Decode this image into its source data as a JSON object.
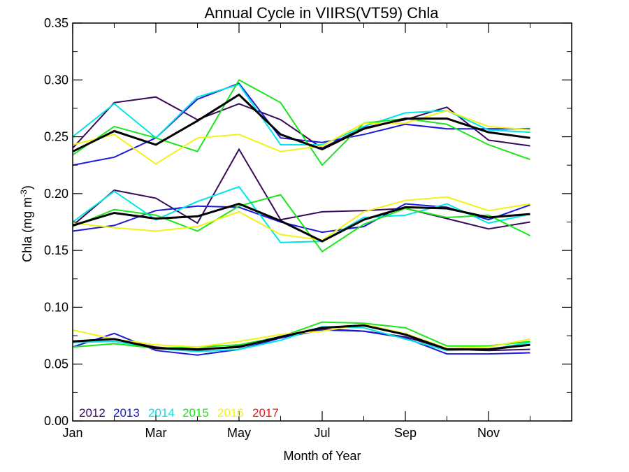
{
  "chart_data": {
    "type": "line",
    "title": "Annual Cycle in VIIRS(VT59) Chla",
    "xlabel": "Month of Year",
    "ylabel_main": "Chla (mg m",
    "ylabel_sup": "-3",
    "ylabel_close": ")",
    "xlim": [
      1,
      13
    ],
    "ylim": [
      0.0,
      0.35
    ],
    "x_ticks": [
      {
        "value": 1,
        "label": "Jan"
      },
      {
        "value": 3,
        "label": "Mar"
      },
      {
        "value": 5,
        "label": "May"
      },
      {
        "value": 7,
        "label": "Jul"
      },
      {
        "value": 9,
        "label": "Sep"
      },
      {
        "value": 11,
        "label": "Nov"
      }
    ],
    "y_ticks": [
      {
        "value": 0.0,
        "label": "0.00"
      },
      {
        "value": 0.05,
        "label": "0.05"
      },
      {
        "value": 0.1,
        "label": "0.10"
      },
      {
        "value": 0.15,
        "label": "0.15"
      },
      {
        "value": 0.2,
        "label": "0.20"
      },
      {
        "value": 0.25,
        "label": "0.25"
      },
      {
        "value": 0.3,
        "label": "0.30"
      },
      {
        "value": 0.35,
        "label": "0.35"
      }
    ],
    "x": [
      1,
      2,
      3,
      4,
      5,
      6,
      7,
      8,
      9,
      10,
      11,
      12
    ],
    "legend": [
      {
        "label": "2012",
        "color": "#3a0a5a"
      },
      {
        "label": "2013",
        "color": "#1a1ad8"
      },
      {
        "label": "2014",
        "color": "#00e6e6"
      },
      {
        "label": "2015",
        "color": "#1ae61a"
      },
      {
        "label": "2016",
        "color": "#f2f21a"
      },
      {
        "label": "2017",
        "color": "#e61a1a"
      }
    ],
    "groups": [
      {
        "series": [
          {
            "year": "2012",
            "color": "#3a0a5a",
            "values": [
              0.24,
              0.28,
              0.285,
              0.265,
              0.279,
              0.265,
              0.24,
              0.258,
              0.265,
              0.276,
              0.247,
              0.242
            ]
          },
          {
            "year": "2013",
            "color": "#1a1ad8",
            "values": [
              0.225,
              0.232,
              0.249,
              0.283,
              0.297,
              0.249,
              0.245,
              0.252,
              0.261,
              0.257,
              0.257,
              0.257
            ]
          },
          {
            "year": "2014",
            "color": "#00e6e6",
            "values": [
              0.25,
              0.279,
              0.249,
              0.285,
              0.296,
              0.243,
              0.243,
              0.259,
              0.271,
              0.273,
              0.256,
              0.254
            ]
          },
          {
            "year": "2015",
            "color": "#1ae61a",
            "values": [
              0.234,
              0.259,
              0.249,
              0.237,
              0.3,
              0.28,
              0.225,
              0.262,
              0.266,
              0.261,
              0.243,
              0.23
            ]
          },
          {
            "year": "2016",
            "color": "#f2f21a",
            "values": [
              0.243,
              0.252,
              0.226,
              0.249,
              0.252,
              0.237,
              0.242,
              0.262,
              0.262,
              0.273,
              0.259,
              0.256
            ]
          },
          {
            "year": "mean",
            "color": "#000000",
            "values": [
              0.237,
              0.255,
              0.243,
              0.264,
              0.287,
              0.252,
              0.239,
              0.257,
              0.266,
              0.266,
              0.254,
              0.249
            ]
          }
        ]
      },
      {
        "series": [
          {
            "year": "2012",
            "color": "#3a0a5a",
            "values": [
              0.172,
              0.203,
              0.196,
              0.174,
              0.239,
              0.177,
              0.184,
              0.185,
              0.187,
              0.178,
              0.169,
              0.175
            ]
          },
          {
            "year": "2013",
            "color": "#1a1ad8",
            "values": [
              0.167,
              0.172,
              0.185,
              0.189,
              0.188,
              0.175,
              0.166,
              0.171,
              0.191,
              0.188,
              0.177,
              0.19
            ]
          },
          {
            "year": "2014",
            "color": "#00e6e6",
            "values": [
              0.175,
              0.202,
              0.177,
              0.193,
              0.206,
              0.157,
              0.158,
              0.179,
              0.181,
              0.191,
              0.174,
              0.182
            ]
          },
          {
            "year": "2015",
            "color": "#1ae61a",
            "values": [
              0.171,
              0.186,
              0.181,
              0.167,
              0.189,
              0.199,
              0.149,
              0.173,
              0.187,
              0.179,
              0.181,
              0.163
            ]
          },
          {
            "year": "2016",
            "color": "#f2f21a",
            "values": [
              0.174,
              0.17,
              0.167,
              0.171,
              0.184,
              0.164,
              0.159,
              0.184,
              0.194,
              0.197,
              0.185,
              0.191
            ]
          },
          {
            "year": "mean",
            "color": "#000000",
            "values": [
              0.172,
              0.183,
              0.178,
              0.18,
              0.191,
              0.176,
              0.158,
              0.177,
              0.188,
              0.187,
              0.179,
              0.182
            ]
          }
        ]
      },
      {
        "series": [
          {
            "year": "2012",
            "color": "#3a0a5a",
            "values": [
              0.07,
              0.072,
              0.065,
              0.062,
              0.066,
              0.073,
              0.081,
              0.079,
              0.074,
              0.063,
              0.062,
              0.063
            ]
          },
          {
            "year": "2013",
            "color": "#1a1ad8",
            "values": [
              0.065,
              0.077,
              0.062,
              0.058,
              0.063,
              0.073,
              0.08,
              0.079,
              0.073,
              0.059,
              0.059,
              0.06
            ]
          },
          {
            "year": "2014",
            "color": "#00e6e6",
            "values": [
              0.069,
              0.07,
              0.064,
              0.061,
              0.063,
              0.071,
              0.083,
              0.082,
              0.072,
              0.062,
              0.063,
              0.069
            ]
          },
          {
            "year": "2015",
            "color": "#1ae61a",
            "values": [
              0.065,
              0.068,
              0.064,
              0.065,
              0.067,
              0.074,
              0.087,
              0.086,
              0.082,
              0.066,
              0.066,
              0.07
            ]
          },
          {
            "year": "2016",
            "color": "#f2f21a",
            "values": [
              0.08,
              0.072,
              0.067,
              0.065,
              0.07,
              0.076,
              0.079,
              0.085,
              0.077,
              0.064,
              0.065,
              0.072
            ]
          },
          {
            "year": "mean",
            "color": "#000000",
            "values": [
              0.07,
              0.072,
              0.064,
              0.063,
              0.065,
              0.074,
              0.082,
              0.084,
              0.076,
              0.063,
              0.063,
              0.067
            ]
          }
        ]
      }
    ]
  }
}
